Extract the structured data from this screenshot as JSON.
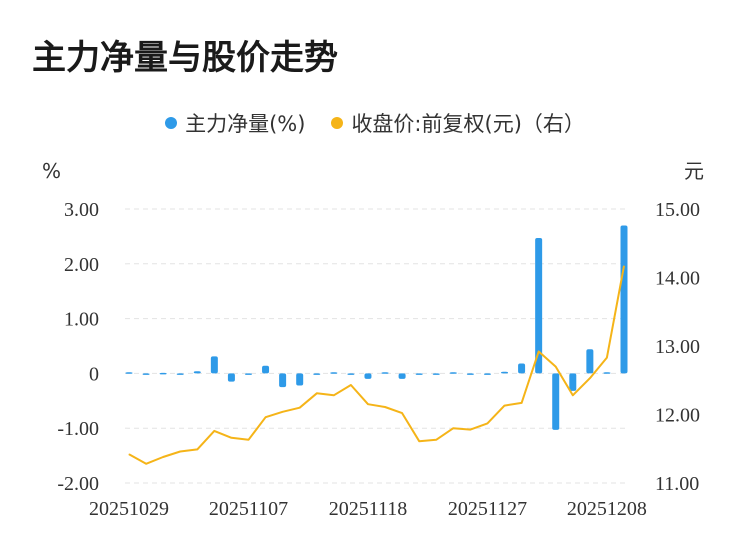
{
  "title": "主力净量与股价走势",
  "legend": [
    {
      "label": "主力净量(%)",
      "color": "#2e9ae8"
    },
    {
      "label": "收盘价:前复权(元)（右）",
      "color": "#f5b418"
    }
  ],
  "chart_data": {
    "type": "bar+line",
    "left_unit": "%",
    "right_unit": "元",
    "left_ticks": [
      "3.00",
      "2.00",
      "1.00",
      "0",
      "-1.00",
      "-2.00"
    ],
    "right_ticks": [
      "15.00",
      "14.00",
      "13.00",
      "12.00",
      "11.00"
    ],
    "x_tick_labels": [
      "20251029",
      "20251107",
      "20251118",
      "20251127",
      "20251208"
    ],
    "ylim_left": [
      -2,
      3
    ],
    "ylim_right": [
      11,
      15
    ],
    "grid": true,
    "legend_position": "top",
    "series": [
      {
        "name": "主力净量(%)",
        "type": "bar",
        "values": [
          0.02,
          -0.02,
          0.01,
          0,
          0.04,
          0.31,
          -0.15,
          -0.02,
          0.14,
          -0.25,
          -0.22,
          -0.02,
          0.02,
          -0.02,
          -0.1,
          0.02,
          -0.1,
          -0.01,
          -0.02,
          0.02,
          0,
          0,
          0.03,
          0.18,
          2.47,
          -1.03,
          -0.32,
          0.44,
          0.02,
          2.7
        ]
      },
      {
        "name": "收盘价:前复权(元)（右）",
        "type": "line",
        "values": [
          11.42,
          11.28,
          11.38,
          11.46,
          11.49,
          11.76,
          11.66,
          11.63,
          11.96,
          12.04,
          12.1,
          12.31,
          12.28,
          12.43,
          12.15,
          12.11,
          12.02,
          11.61,
          11.63,
          11.8,
          11.78,
          11.87,
          12.13,
          12.17,
          12.92,
          12.7,
          12.28,
          12.53,
          12.83,
          14.17
        ]
      }
    ]
  }
}
